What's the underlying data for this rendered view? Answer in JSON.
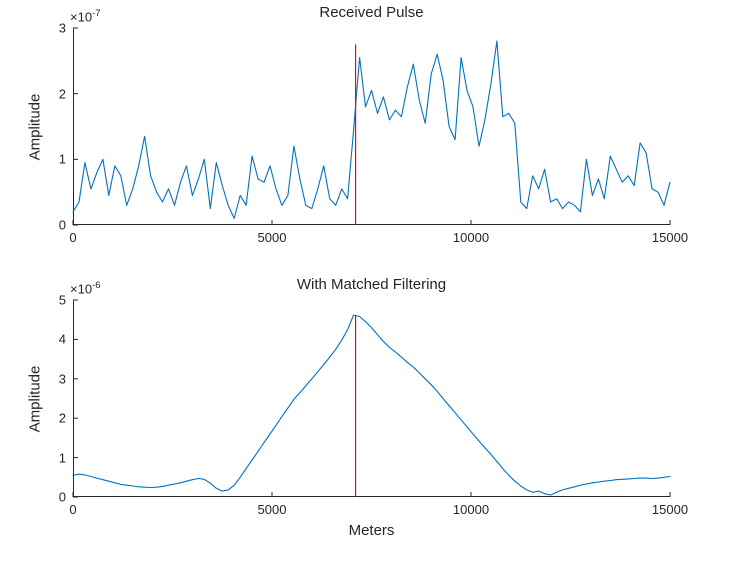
{
  "figure": {
    "background": "#FFFFFF"
  },
  "colors": {
    "line": "#0072BD",
    "marker": "#FF0000",
    "axis": "#262626",
    "text": "#262626"
  },
  "chart_data": [
    {
      "type": "line",
      "title": "Received Pulse",
      "ylabel": "Amplitude",
      "xlabel": "",
      "exp_base": "×10",
      "exp_sup": "-7",
      "xlim": [
        0,
        15000
      ],
      "ylim": [
        0,
        3
      ],
      "xticks": [
        0,
        5000,
        10000,
        15000
      ],
      "yticks": [
        0,
        1,
        2,
        3
      ],
      "grid": false,
      "legend": "none",
      "x_start": 0,
      "x_step": 150,
      "values": [
        0.2,
        0.35,
        0.95,
        0.55,
        0.8,
        1.0,
        0.45,
        0.9,
        0.75,
        0.3,
        0.55,
        0.9,
        1.35,
        0.75,
        0.5,
        0.35,
        0.55,
        0.3,
        0.65,
        0.9,
        0.45,
        0.7,
        1.0,
        0.25,
        0.95,
        0.6,
        0.3,
        0.1,
        0.45,
        0.3,
        1.05,
        0.7,
        0.65,
        0.9,
        0.55,
        0.3,
        0.45,
        1.2,
        0.7,
        0.3,
        0.25,
        0.55,
        0.9,
        0.4,
        0.3,
        0.55,
        0.4,
        1.45,
        2.55,
        1.8,
        2.05,
        1.7,
        1.95,
        1.6,
        1.75,
        1.65,
        2.1,
        2.45,
        1.9,
        1.55,
        2.3,
        2.6,
        2.2,
        1.5,
        1.3,
        2.55,
        2.05,
        1.8,
        1.2,
        1.6,
        2.15,
        2.8,
        1.65,
        1.7,
        1.55,
        0.35,
        0.25,
        0.75,
        0.55,
        0.85,
        0.35,
        0.4,
        0.25,
        0.35,
        0.3,
        0.2,
        1.0,
        0.45,
        0.7,
        0.4,
        1.05,
        0.85,
        0.65,
        0.75,
        0.6,
        1.25,
        1.1,
        0.55,
        0.5,
        0.3,
        0.65
      ],
      "marker_x": 7100,
      "marker_ymax": 2.75
    },
    {
      "type": "line",
      "title": "With Matched Filtering",
      "ylabel": "Amplitude",
      "xlabel": "Meters",
      "exp_base": "×10",
      "exp_sup": "-6",
      "xlim": [
        0,
        15000
      ],
      "ylim": [
        0,
        5
      ],
      "xticks": [
        0,
        5000,
        10000,
        15000
      ],
      "yticks": [
        0,
        1,
        2,
        3,
        4,
        5
      ],
      "grid": false,
      "legend": "none",
      "x_start": 0,
      "x_step": 150,
      "values": [
        0.55,
        0.58,
        0.56,
        0.52,
        0.48,
        0.44,
        0.4,
        0.36,
        0.32,
        0.3,
        0.28,
        0.26,
        0.25,
        0.24,
        0.25,
        0.27,
        0.3,
        0.33,
        0.36,
        0.4,
        0.44,
        0.47,
        0.45,
        0.35,
        0.22,
        0.15,
        0.18,
        0.3,
        0.5,
        0.72,
        0.94,
        1.16,
        1.38,
        1.6,
        1.82,
        2.04,
        2.26,
        2.48,
        2.65,
        2.82,
        3.0,
        3.18,
        3.36,
        3.55,
        3.75,
        3.98,
        4.25,
        4.62,
        4.58,
        4.45,
        4.3,
        4.12,
        3.95,
        3.8,
        3.68,
        3.55,
        3.42,
        3.3,
        3.15,
        3.0,
        2.85,
        2.68,
        2.5,
        2.32,
        2.14,
        1.96,
        1.78,
        1.6,
        1.42,
        1.25,
        1.08,
        0.9,
        0.72,
        0.55,
        0.4,
        0.28,
        0.18,
        0.12,
        0.15,
        0.08,
        0.05,
        0.12,
        0.18,
        0.22,
        0.26,
        0.3,
        0.33,
        0.36,
        0.38,
        0.4,
        0.42,
        0.44,
        0.45,
        0.46,
        0.47,
        0.48,
        0.48,
        0.47,
        0.48,
        0.5,
        0.52
      ],
      "marker_x": 7100,
      "marker_ymax": 4.62
    }
  ]
}
